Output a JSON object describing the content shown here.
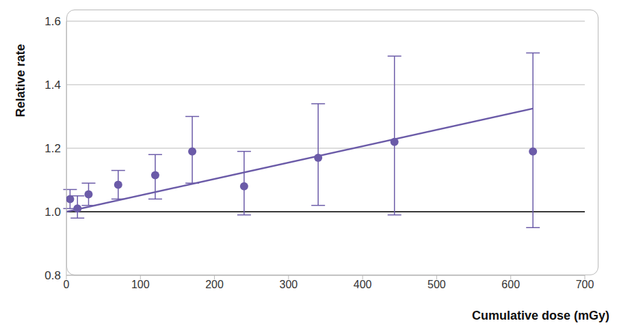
{
  "chart_data": {
    "type": "scatter",
    "x_label": "Cumulative dose (mGy)",
    "y_label": "Relative rate",
    "xlim": [
      0,
      700
    ],
    "xticks": [
      0,
      100,
      200,
      300,
      400,
      500,
      600,
      700
    ],
    "ylim": [
      0.8,
      1.6
    ],
    "yticks": [
      0.8,
      {
        "value": 1,
        "label": "1.0"
      },
      1.2,
      1.4,
      1.6
    ],
    "grid": "y",
    "reference_y": 1,
    "series": [
      {
        "type": "scatter",
        "color": "#6b5ba8",
        "marker": "circle",
        "x": [
          5,
          15,
          30,
          70,
          120,
          170,
          240,
          340,
          443,
          630
        ],
        "values": [
          1.04,
          1.01,
          1.055,
          1.085,
          1.115,
          1.19,
          1.08,
          1.17,
          1.22,
          1.19
        ],
        "ci_lower": [
          1.01,
          0.98,
          1.02,
          1.04,
          1.04,
          1.09,
          0.99,
          1.02,
          0.99,
          0.95
        ],
        "ci_upper": [
          1.07,
          1.05,
          1.09,
          1.13,
          1.18,
          1.3,
          1.19,
          1.34,
          1.49,
          1.5
        ]
      },
      {
        "type": "line",
        "color": "#6b5ba8",
        "line_style": "solid",
        "x": [
          0,
          630
        ],
        "values": [
          1,
          1.325
        ]
      }
    ]
  }
}
